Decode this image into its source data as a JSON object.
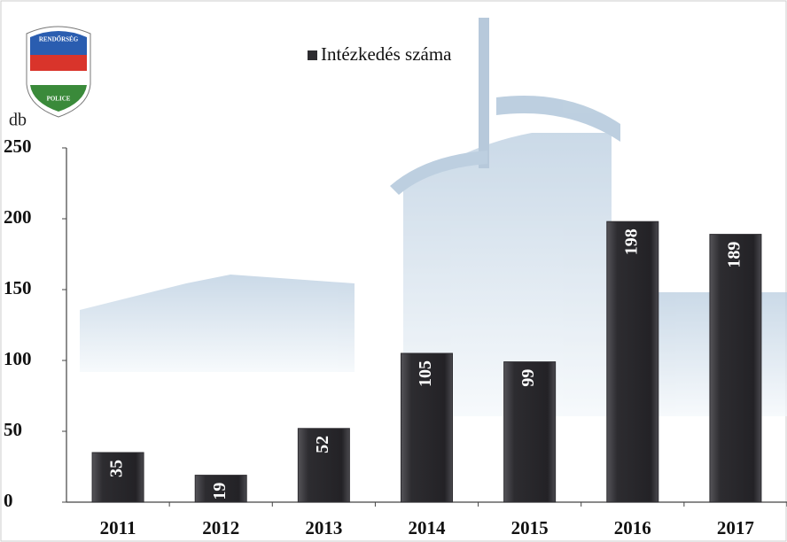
{
  "chart_data": {
    "type": "bar",
    "y_label": "db",
    "categories": [
      "2011",
      "2012",
      "2013",
      "2014",
      "2015",
      "2016",
      "2017"
    ],
    "series": [
      {
        "name": "Intézkedés száma",
        "color": "#2d2c30",
        "values": [
          35,
          19,
          52,
          105,
          99,
          198,
          189
        ]
      }
    ],
    "ylim": [
      0,
      250
    ],
    "yticks": [
      0,
      50,
      100,
      150,
      200,
      250
    ],
    "legend": "top"
  },
  "logo": {
    "top_text": "RENDŐRSÉG",
    "bottom_text": "POLICE"
  }
}
